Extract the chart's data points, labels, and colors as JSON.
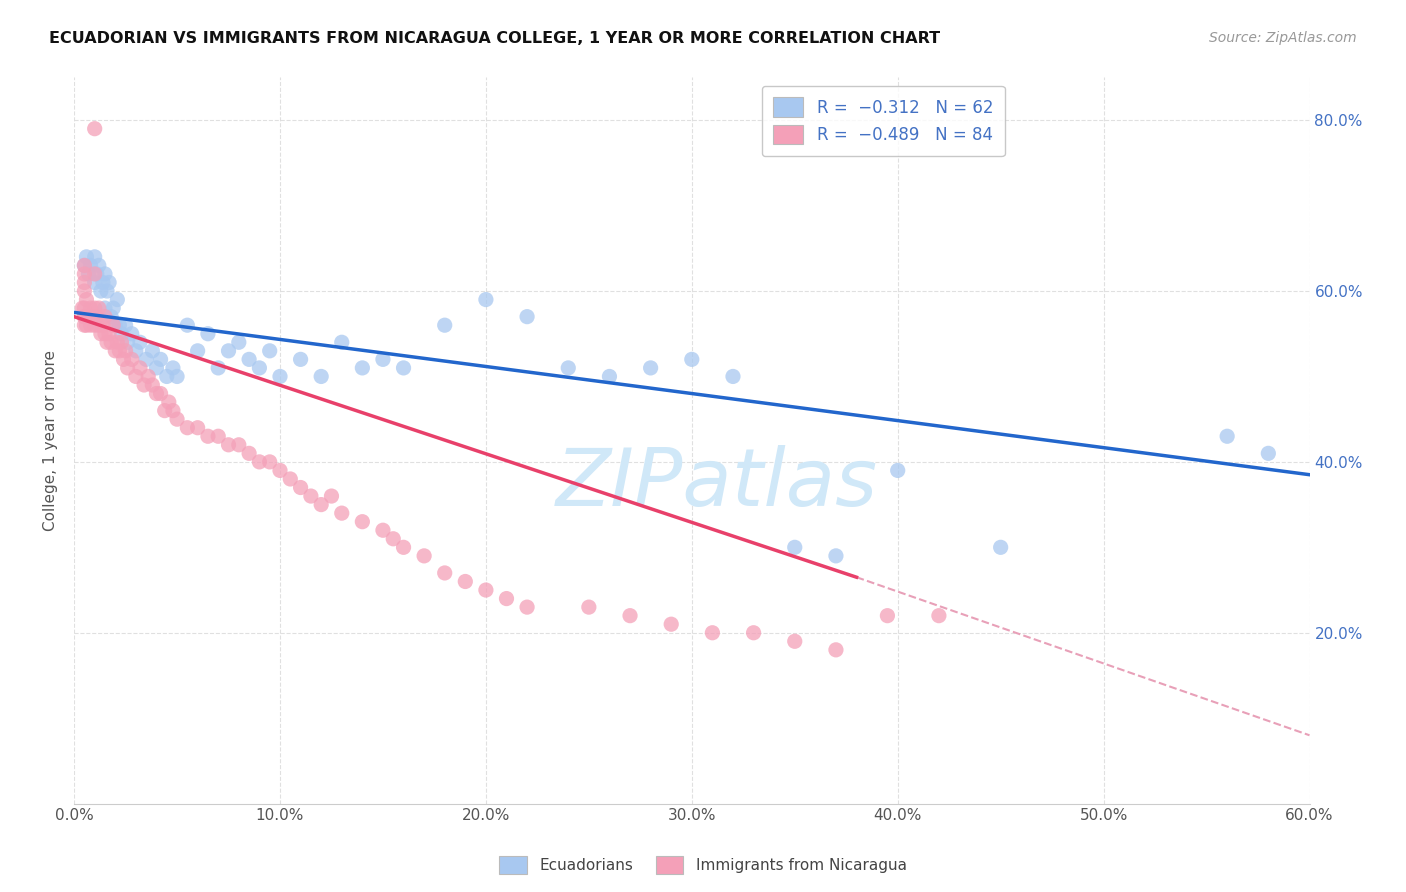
{
  "title": "ECUADORIAN VS IMMIGRANTS FROM NICARAGUA COLLEGE, 1 YEAR OR MORE CORRELATION CHART",
  "source": "Source: ZipAtlas.com",
  "ylabel": "College, 1 year or more",
  "blue_color": "#a8c8f0",
  "pink_color": "#f4a0b8",
  "blue_line_color": "#2266cc",
  "pink_line_color": "#e8406a",
  "dashed_line_color": "#e8a0b8",
  "watermark_color": "#d0e8f8",
  "xlim": [
    0.0,
    0.6
  ],
  "ylim": [
    0.0,
    0.85
  ],
  "blue_scatter_x": [
    0.005,
    0.006,
    0.007,
    0.008,
    0.01,
    0.01,
    0.011,
    0.012,
    0.013,
    0.014,
    0.015,
    0.015,
    0.016,
    0.017,
    0.018,
    0.019,
    0.02,
    0.021,
    0.022,
    0.023,
    0.025,
    0.026,
    0.028,
    0.03,
    0.032,
    0.035,
    0.038,
    0.04,
    0.042,
    0.045,
    0.048,
    0.05,
    0.055,
    0.06,
    0.065,
    0.07,
    0.075,
    0.08,
    0.085,
    0.09,
    0.095,
    0.1,
    0.11,
    0.12,
    0.13,
    0.14,
    0.15,
    0.16,
    0.18,
    0.2,
    0.22,
    0.24,
    0.26,
    0.28,
    0.3,
    0.32,
    0.35,
    0.37,
    0.4,
    0.45,
    0.56,
    0.58
  ],
  "blue_scatter_y": [
    0.63,
    0.64,
    0.62,
    0.63,
    0.64,
    0.61,
    0.62,
    0.63,
    0.6,
    0.61,
    0.62,
    0.58,
    0.6,
    0.61,
    0.57,
    0.58,
    0.56,
    0.59,
    0.56,
    0.55,
    0.56,
    0.54,
    0.55,
    0.53,
    0.54,
    0.52,
    0.53,
    0.51,
    0.52,
    0.5,
    0.51,
    0.5,
    0.56,
    0.53,
    0.55,
    0.51,
    0.53,
    0.54,
    0.52,
    0.51,
    0.53,
    0.5,
    0.52,
    0.5,
    0.54,
    0.51,
    0.52,
    0.51,
    0.56,
    0.59,
    0.57,
    0.51,
    0.5,
    0.51,
    0.52,
    0.5,
    0.3,
    0.29,
    0.39,
    0.3,
    0.43,
    0.41
  ],
  "pink_scatter_x": [
    0.004,
    0.005,
    0.006,
    0.006,
    0.007,
    0.008,
    0.008,
    0.009,
    0.01,
    0.01,
    0.011,
    0.012,
    0.012,
    0.013,
    0.014,
    0.015,
    0.015,
    0.016,
    0.017,
    0.018,
    0.019,
    0.02,
    0.021,
    0.022,
    0.023,
    0.024,
    0.025,
    0.026,
    0.028,
    0.03,
    0.032,
    0.034,
    0.036,
    0.038,
    0.04,
    0.042,
    0.044,
    0.046,
    0.048,
    0.05,
    0.055,
    0.06,
    0.065,
    0.07,
    0.075,
    0.08,
    0.085,
    0.09,
    0.095,
    0.1,
    0.105,
    0.11,
    0.115,
    0.12,
    0.125,
    0.13,
    0.14,
    0.15,
    0.155,
    0.16,
    0.17,
    0.18,
    0.19,
    0.2,
    0.21,
    0.22,
    0.25,
    0.27,
    0.29,
    0.31,
    0.33,
    0.35,
    0.37,
    0.395,
    0.42,
    0.01,
    0.01,
    0.005,
    0.005,
    0.005,
    0.005,
    0.005,
    0.005,
    0.005
  ],
  "pink_scatter_y": [
    0.58,
    0.57,
    0.56,
    0.59,
    0.57,
    0.56,
    0.58,
    0.57,
    0.58,
    0.56,
    0.57,
    0.56,
    0.58,
    0.55,
    0.56,
    0.55,
    0.57,
    0.54,
    0.55,
    0.54,
    0.56,
    0.53,
    0.54,
    0.53,
    0.54,
    0.52,
    0.53,
    0.51,
    0.52,
    0.5,
    0.51,
    0.49,
    0.5,
    0.49,
    0.48,
    0.48,
    0.46,
    0.47,
    0.46,
    0.45,
    0.44,
    0.44,
    0.43,
    0.43,
    0.42,
    0.42,
    0.41,
    0.4,
    0.4,
    0.39,
    0.38,
    0.37,
    0.36,
    0.35,
    0.36,
    0.34,
    0.33,
    0.32,
    0.31,
    0.3,
    0.29,
    0.27,
    0.26,
    0.25,
    0.24,
    0.23,
    0.23,
    0.22,
    0.21,
    0.2,
    0.2,
    0.19,
    0.18,
    0.22,
    0.22,
    0.62,
    0.79,
    0.6,
    0.61,
    0.62,
    0.57,
    0.58,
    0.56,
    0.63
  ],
  "blue_line_x": [
    0.0,
    0.6
  ],
  "blue_line_y": [
    0.575,
    0.385
  ],
  "pink_line_x": [
    0.0,
    0.38
  ],
  "pink_line_y": [
    0.57,
    0.265
  ],
  "dashed_line_x": [
    0.38,
    0.6
  ],
  "dashed_line_y": [
    0.265,
    0.08
  ],
  "background_color": "#ffffff",
  "grid_color": "#dddddd"
}
